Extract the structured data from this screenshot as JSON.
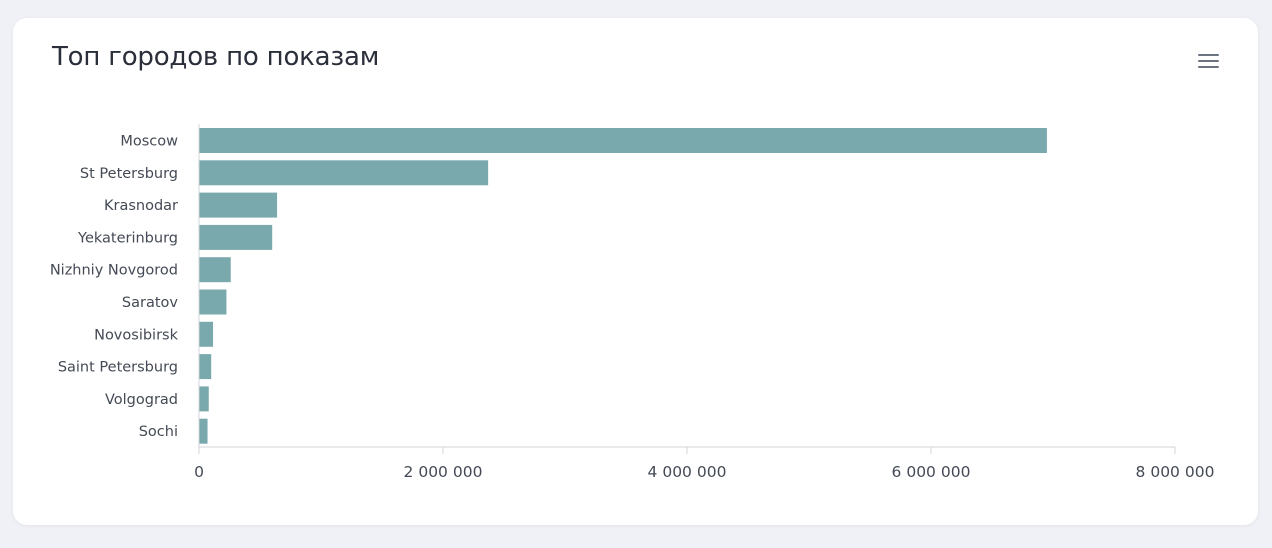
{
  "card": {
    "title": "Топ городов по показам",
    "menu_icon": "hamburger-menu-icon"
  },
  "colors": {
    "bar": "#79a9ad",
    "axis": "#d0d4da",
    "background": "#f0f1f6",
    "card": "#ffffff"
  },
  "chart_data": {
    "type": "bar",
    "orientation": "horizontal",
    "title": "Топ городов по показам",
    "categories": [
      "Moscow",
      "St Petersburg",
      "Krasnodar",
      "Yekaterinburg",
      "Nizhniy Novgorod",
      "Saratov",
      "Novosibirsk",
      "Saint Petersburg",
      "Volgograd",
      "Sochi"
    ],
    "values": [
      6950000,
      2370000,
      640000,
      600000,
      260000,
      225000,
      115000,
      100000,
      80000,
      70000
    ],
    "xlim": [
      0,
      8000000
    ],
    "x_ticks": [
      0,
      2000000,
      4000000,
      6000000,
      8000000
    ],
    "x_tick_labels": [
      "0",
      "2 000 000",
      "4 000 000",
      "6 000 000",
      "8 000 000"
    ],
    "xlabel": "",
    "ylabel": "",
    "grid": false,
    "legend": "none"
  }
}
